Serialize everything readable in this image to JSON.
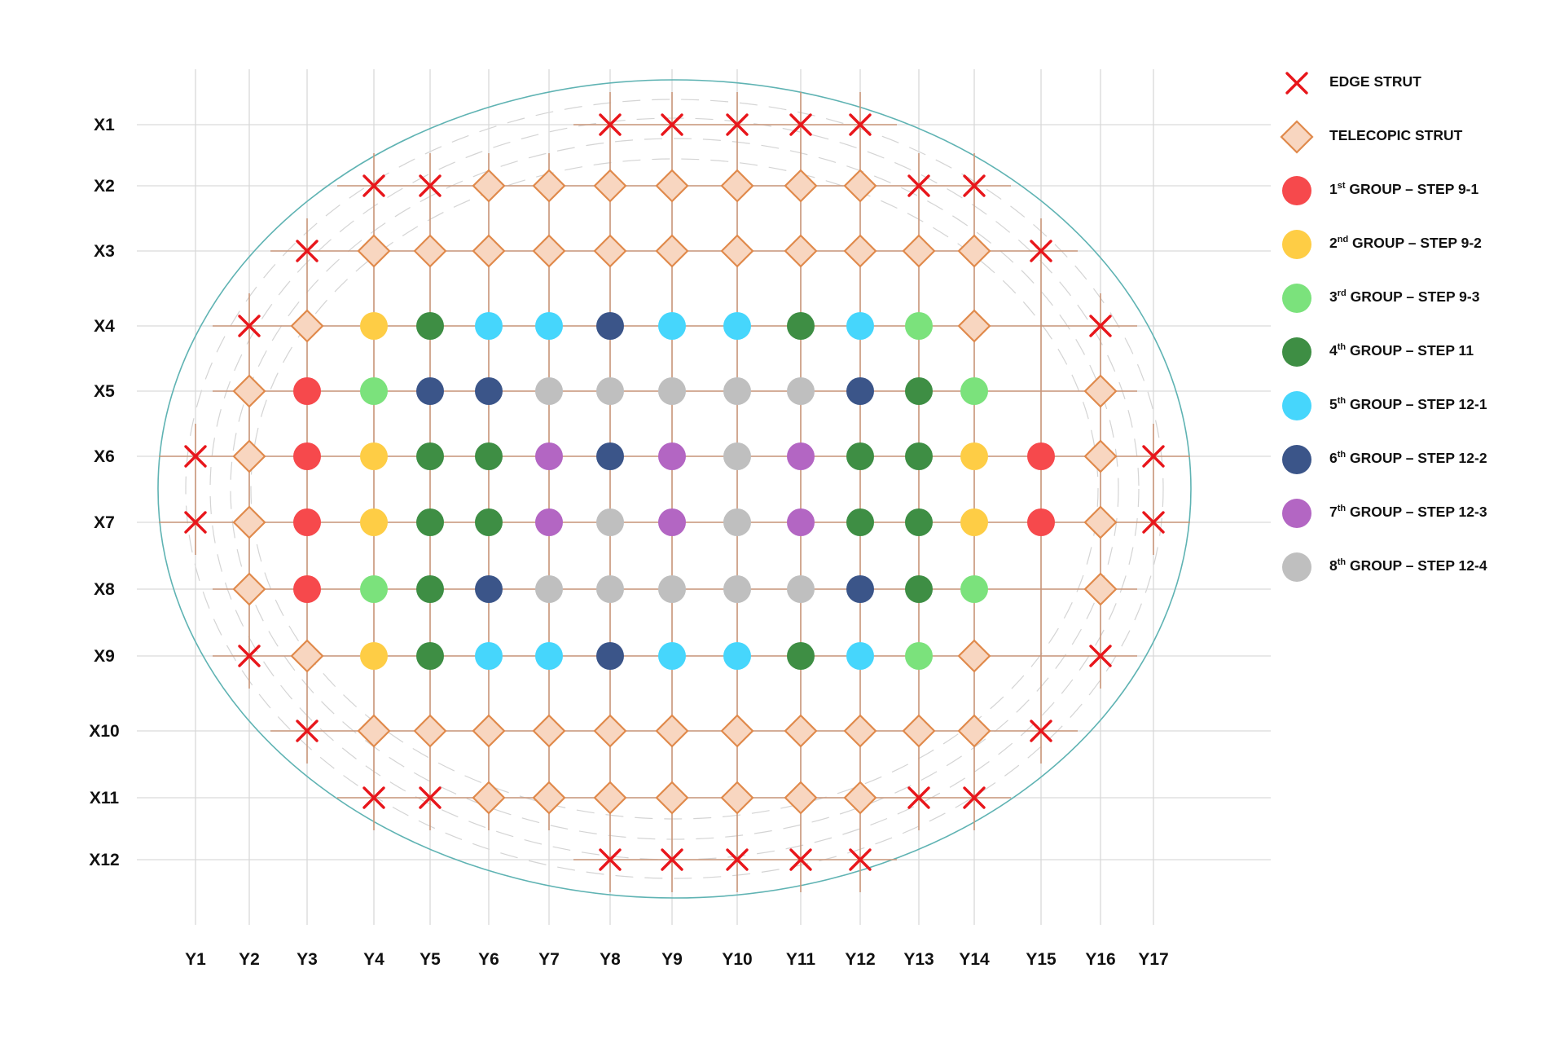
{
  "row_labels": [
    "X1",
    "X2",
    "X3",
    "X4",
    "X5",
    "X6",
    "X7",
    "X8",
    "X9",
    "X10",
    "X11",
    "X12"
  ],
  "column_labels": [
    "Y1",
    "Y2",
    "Y3",
    "Y4",
    "Y5",
    "Y6",
    "Y7",
    "Y8",
    "Y9",
    "Y10",
    "Y11",
    "Y12",
    "Y13",
    "Y14",
    "Y15",
    "Y16",
    "Y17"
  ],
  "legend": [
    {
      "key": "E",
      "symbol": "x-mark",
      "label": "EDGE STRUT"
    },
    {
      "key": "T",
      "symbol": "diamond",
      "label": "TELECOPIC STRUT"
    },
    {
      "key": "1",
      "symbol": "circle",
      "ordinal": "1",
      "suffix": "st",
      "label": " GROUP – STEP 9-1"
    },
    {
      "key": "2",
      "symbol": "circle",
      "ordinal": "2",
      "suffix": "nd",
      "label": " GROUP – STEP 9-2"
    },
    {
      "key": "3",
      "symbol": "circle",
      "ordinal": "3",
      "suffix": "rd",
      "label": " GROUP – STEP 9-3"
    },
    {
      "key": "4",
      "symbol": "circle",
      "ordinal": "4",
      "suffix": "th",
      "label": " GROUP – STEP 11"
    },
    {
      "key": "5",
      "symbol": "circle",
      "ordinal": "5",
      "suffix": "th",
      "label": " GROUP – STEP 12-1"
    },
    {
      "key": "6",
      "symbol": "circle",
      "ordinal": "6",
      "suffix": "th",
      "label": " GROUP – STEP 12-2"
    },
    {
      "key": "7",
      "symbol": "circle",
      "ordinal": "7",
      "suffix": "th",
      "label": " GROUP – STEP 12-3"
    },
    {
      "key": "8",
      "symbol": "circle",
      "ordinal": "8",
      "suffix": "th",
      "label": " GROUP – STEP 12-4"
    }
  ],
  "colors": {
    "E": "#e8161b",
    "T": "#f8d6c0",
    "T_border": "#e08a4c",
    "1": "#f6494c",
    "2": "#fecd45",
    "3": "#7be27c",
    "4": "#3e8e44",
    "5": "#46d6fc",
    "6": "#3b5589",
    "7": "#b366c3",
    "8": "#bfbfbf",
    "outline": "#5fb3b3",
    "grid": "#d9d9d9",
    "strut_line": "#c9967a"
  },
  "grid_rows": [
    ".......EEEEE.....",
    "...EETTTTTTTEE...",
    "..ETTTTTTTTTTTE..",
    ".ET2455655453T.E.",
    ".T136688888643 T.",
    "ET1244767874421TE",
    "ET1244787874421TE",
    ".T134688888643 T.",
    ".ET2455655453T.E.",
    "..ETTTTTTTTTTTE..",
    "...EETTTTTTTEE...",
    ".......EEEEE....."
  ]
}
